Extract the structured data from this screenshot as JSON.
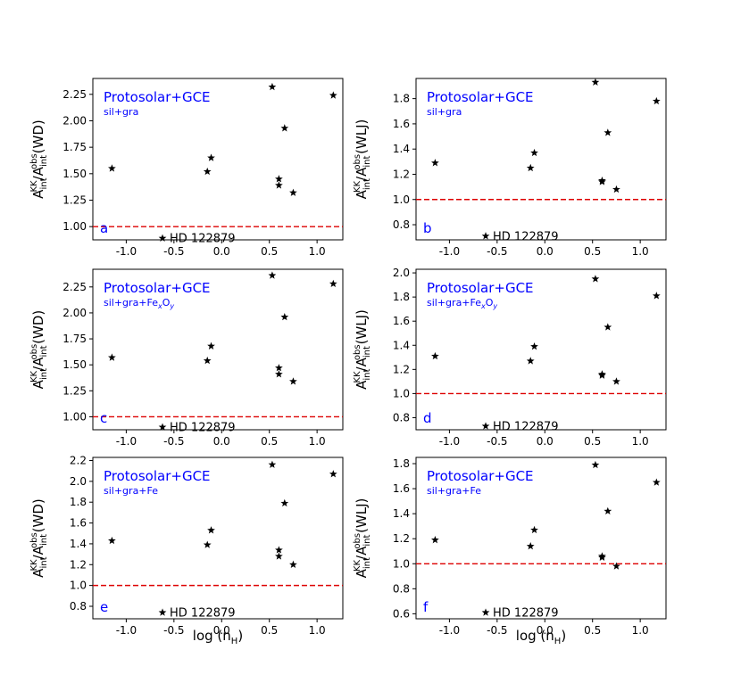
{
  "figure": {
    "xlabel_main": "log (n",
    "xlabel_sub": "H",
    "xlabel_close": ")"
  },
  "chart_data": [
    {
      "type": "scatter",
      "panel": "a",
      "title": "Protosolar+GCE",
      "subtitle": "sil+gra",
      "ylabel_ref": "WD",
      "annotation": "HD 122879",
      "xlim": [
        -1.35,
        1.27
      ],
      "ylim": [
        0.875,
        2.4
      ],
      "xticks": [
        -1.0,
        -0.5,
        0.0,
        0.5,
        1.0
      ],
      "yticks": [
        1.0,
        1.25,
        1.5,
        1.75,
        2.0,
        2.25
      ],
      "reference_line": 1.0,
      "points": [
        {
          "x": -1.15,
          "y": 1.55
        },
        {
          "x": -0.15,
          "y": 1.52
        },
        {
          "x": -0.11,
          "y": 1.65
        },
        {
          "x": 0.53,
          "y": 2.32
        },
        {
          "x": 0.6,
          "y": 1.45
        },
        {
          "x": 0.6,
          "y": 1.39
        },
        {
          "x": 0.66,
          "y": 1.93
        },
        {
          "x": 0.75,
          "y": 1.32
        },
        {
          "x": 1.17,
          "y": 2.24
        }
      ],
      "highlight_point": {
        "x": -0.62,
        "y": 0.89
      }
    },
    {
      "type": "scatter",
      "panel": "b",
      "title": "Protosolar+GCE",
      "subtitle": "sil+gra",
      "ylabel_ref": "WLJ",
      "annotation": "HD 122879",
      "xlim": [
        -1.35,
        1.27
      ],
      "ylim": [
        0.68,
        1.96
      ],
      "xticks": [
        -1.0,
        -0.5,
        0.0,
        0.5,
        1.0
      ],
      "yticks": [
        0.8,
        1.0,
        1.2,
        1.4,
        1.6,
        1.8
      ],
      "reference_line": 1.0,
      "points": [
        {
          "x": -1.15,
          "y": 1.29
        },
        {
          "x": -0.15,
          "y": 1.25
        },
        {
          "x": -0.11,
          "y": 1.37
        },
        {
          "x": 0.53,
          "y": 1.93
        },
        {
          "x": 0.6,
          "y": 1.15
        },
        {
          "x": 0.6,
          "y": 1.14
        },
        {
          "x": 0.66,
          "y": 1.53
        },
        {
          "x": 0.75,
          "y": 1.08
        },
        {
          "x": 1.17,
          "y": 1.78
        }
      ],
      "highlight_point": {
        "x": -0.62,
        "y": 0.71
      }
    },
    {
      "type": "scatter",
      "panel": "c",
      "title": "Protosolar+GCE",
      "subtitle": "sil+gra+Fe",
      "subtitle_sub1": "x",
      "subtitle_mid": "O",
      "subtitle_sub2": "y",
      "ylabel_ref": "WD",
      "annotation": "HD 122879",
      "xlim": [
        -1.35,
        1.27
      ],
      "ylim": [
        0.875,
        2.42
      ],
      "xticks": [
        -1.0,
        -0.5,
        0.0,
        0.5,
        1.0
      ],
      "yticks": [
        1.0,
        1.25,
        1.5,
        1.75,
        2.0,
        2.25
      ],
      "reference_line": 1.0,
      "points": [
        {
          "x": -1.15,
          "y": 1.57
        },
        {
          "x": -0.15,
          "y": 1.54
        },
        {
          "x": -0.11,
          "y": 1.68
        },
        {
          "x": 0.53,
          "y": 2.36
        },
        {
          "x": 0.6,
          "y": 1.47
        },
        {
          "x": 0.6,
          "y": 1.41
        },
        {
          "x": 0.66,
          "y": 1.96
        },
        {
          "x": 0.75,
          "y": 1.34
        },
        {
          "x": 1.17,
          "y": 2.28
        }
      ],
      "highlight_point": {
        "x": -0.62,
        "y": 0.9
      }
    },
    {
      "type": "scatter",
      "panel": "d",
      "title": "Protosolar+GCE",
      "subtitle": "sil+gra+Fe",
      "subtitle_sub1": "x",
      "subtitle_mid": "O",
      "subtitle_sub2": "y",
      "ylabel_ref": "WLJ",
      "annotation": "HD 122879",
      "xlim": [
        -1.35,
        1.27
      ],
      "ylim": [
        0.7,
        2.03
      ],
      "xticks": [
        -1.0,
        -0.5,
        0.0,
        0.5,
        1.0
      ],
      "yticks": [
        0.8,
        1.0,
        1.2,
        1.4,
        1.6,
        1.8,
        2.0
      ],
      "reference_line": 1.0,
      "points": [
        {
          "x": -1.15,
          "y": 1.31
        },
        {
          "x": -0.15,
          "y": 1.27
        },
        {
          "x": -0.11,
          "y": 1.39
        },
        {
          "x": 0.53,
          "y": 1.95
        },
        {
          "x": 0.6,
          "y": 1.16
        },
        {
          "x": 0.6,
          "y": 1.15
        },
        {
          "x": 0.66,
          "y": 1.55
        },
        {
          "x": 0.75,
          "y": 1.1
        },
        {
          "x": 1.17,
          "y": 1.81
        }
      ],
      "highlight_point": {
        "x": -0.62,
        "y": 0.73
      }
    },
    {
      "type": "scatter",
      "panel": "e",
      "title": "Protosolar+GCE",
      "subtitle": "sil+gra+Fe",
      "ylabel_ref": "WD",
      "annotation": "HD 122879",
      "xlim": [
        -1.35,
        1.27
      ],
      "ylim": [
        0.68,
        2.23
      ],
      "xticks": [
        -1.0,
        -0.5,
        0.0,
        0.5,
        1.0
      ],
      "yticks": [
        0.8,
        1.0,
        1.2,
        1.4,
        1.6,
        1.8,
        2.0,
        2.2
      ],
      "reference_line": 1.0,
      "points": [
        {
          "x": -1.15,
          "y": 1.43
        },
        {
          "x": -0.15,
          "y": 1.39
        },
        {
          "x": -0.11,
          "y": 1.53
        },
        {
          "x": 0.53,
          "y": 2.16
        },
        {
          "x": 0.6,
          "y": 1.34
        },
        {
          "x": 0.6,
          "y": 1.28
        },
        {
          "x": 0.66,
          "y": 1.79
        },
        {
          "x": 0.75,
          "y": 1.2
        },
        {
          "x": 1.17,
          "y": 2.07
        }
      ],
      "highlight_point": {
        "x": -0.62,
        "y": 0.74
      }
    },
    {
      "type": "scatter",
      "panel": "f",
      "title": "Protosolar+GCE",
      "subtitle": "sil+gra+Fe",
      "ylabel_ref": "WLJ",
      "annotation": "HD 122879",
      "xlim": [
        -1.35,
        1.27
      ],
      "ylim": [
        0.56,
        1.85
      ],
      "xticks": [
        -1.0,
        -0.5,
        0.0,
        0.5,
        1.0
      ],
      "yticks": [
        0.6,
        0.8,
        1.0,
        1.2,
        1.4,
        1.6,
        1.8
      ],
      "reference_line": 1.0,
      "points": [
        {
          "x": -1.15,
          "y": 1.19
        },
        {
          "x": -0.15,
          "y": 1.14
        },
        {
          "x": -0.11,
          "y": 1.27
        },
        {
          "x": 0.53,
          "y": 1.79
        },
        {
          "x": 0.6,
          "y": 1.06
        },
        {
          "x": 0.6,
          "y": 1.05
        },
        {
          "x": 0.66,
          "y": 1.42
        },
        {
          "x": 0.75,
          "y": 0.98
        },
        {
          "x": 1.17,
          "y": 1.65
        }
      ],
      "highlight_point": {
        "x": -0.62,
        "y": 0.61
      }
    }
  ],
  "colors": {
    "title": "#0000ff",
    "reference_line": "#dd0000",
    "marker": "#000000",
    "axis": "#000000"
  }
}
